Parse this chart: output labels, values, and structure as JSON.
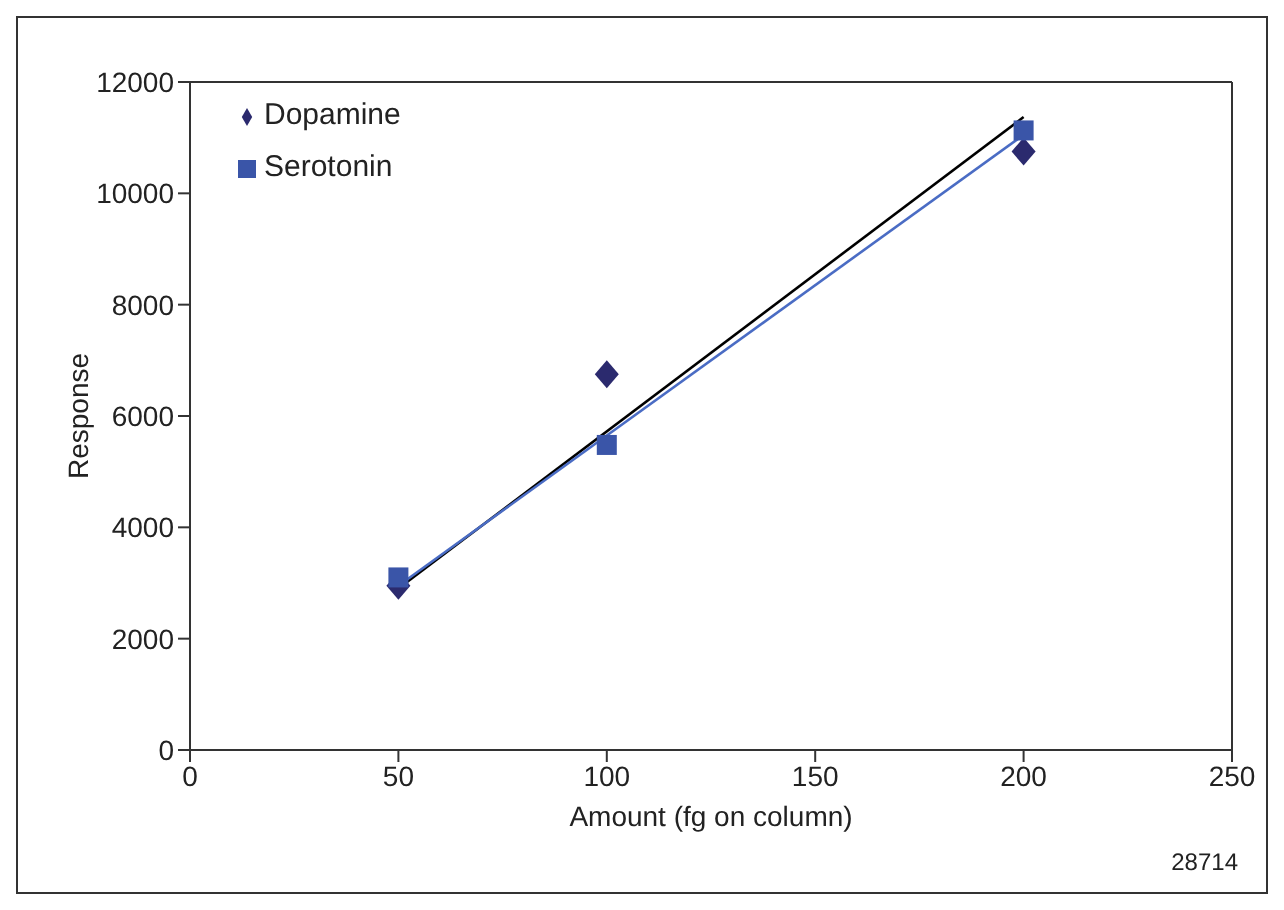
{
  "chart_data": {
    "type": "scatter",
    "xlabel": "Amount (fg on column)",
    "ylabel": "Response",
    "xlim": [
      0,
      250
    ],
    "xticks": [
      0,
      50,
      100,
      150,
      200,
      250
    ],
    "ylim": [
      0,
      12000
    ],
    "yticks": [
      0,
      2000,
      4000,
      6000,
      8000,
      10000,
      12000
    ],
    "legend": "top left",
    "annotations": [
      "28714"
    ],
    "series": [
      {
        "name": "Dopamine",
        "color": "#2b2a6e",
        "marker": "diamond",
        "x": [
          50,
          100,
          200
        ],
        "values": [
          2950,
          6750,
          10750
        ]
      },
      {
        "name": "Serotonin",
        "color": "#3a55a8",
        "marker": "square",
        "x": [
          50,
          100,
          200
        ],
        "values": [
          3100,
          5480,
          11130
        ]
      },
      {
        "type": "line",
        "color": "#000000",
        "x": [
          50,
          200
        ],
        "values": [
          2900,
          11370
        ]
      },
      {
        "type": "line",
        "color": "#4a6cc4",
        "x": [
          50,
          200
        ],
        "values": [
          2950,
          11050
        ]
      }
    ]
  }
}
